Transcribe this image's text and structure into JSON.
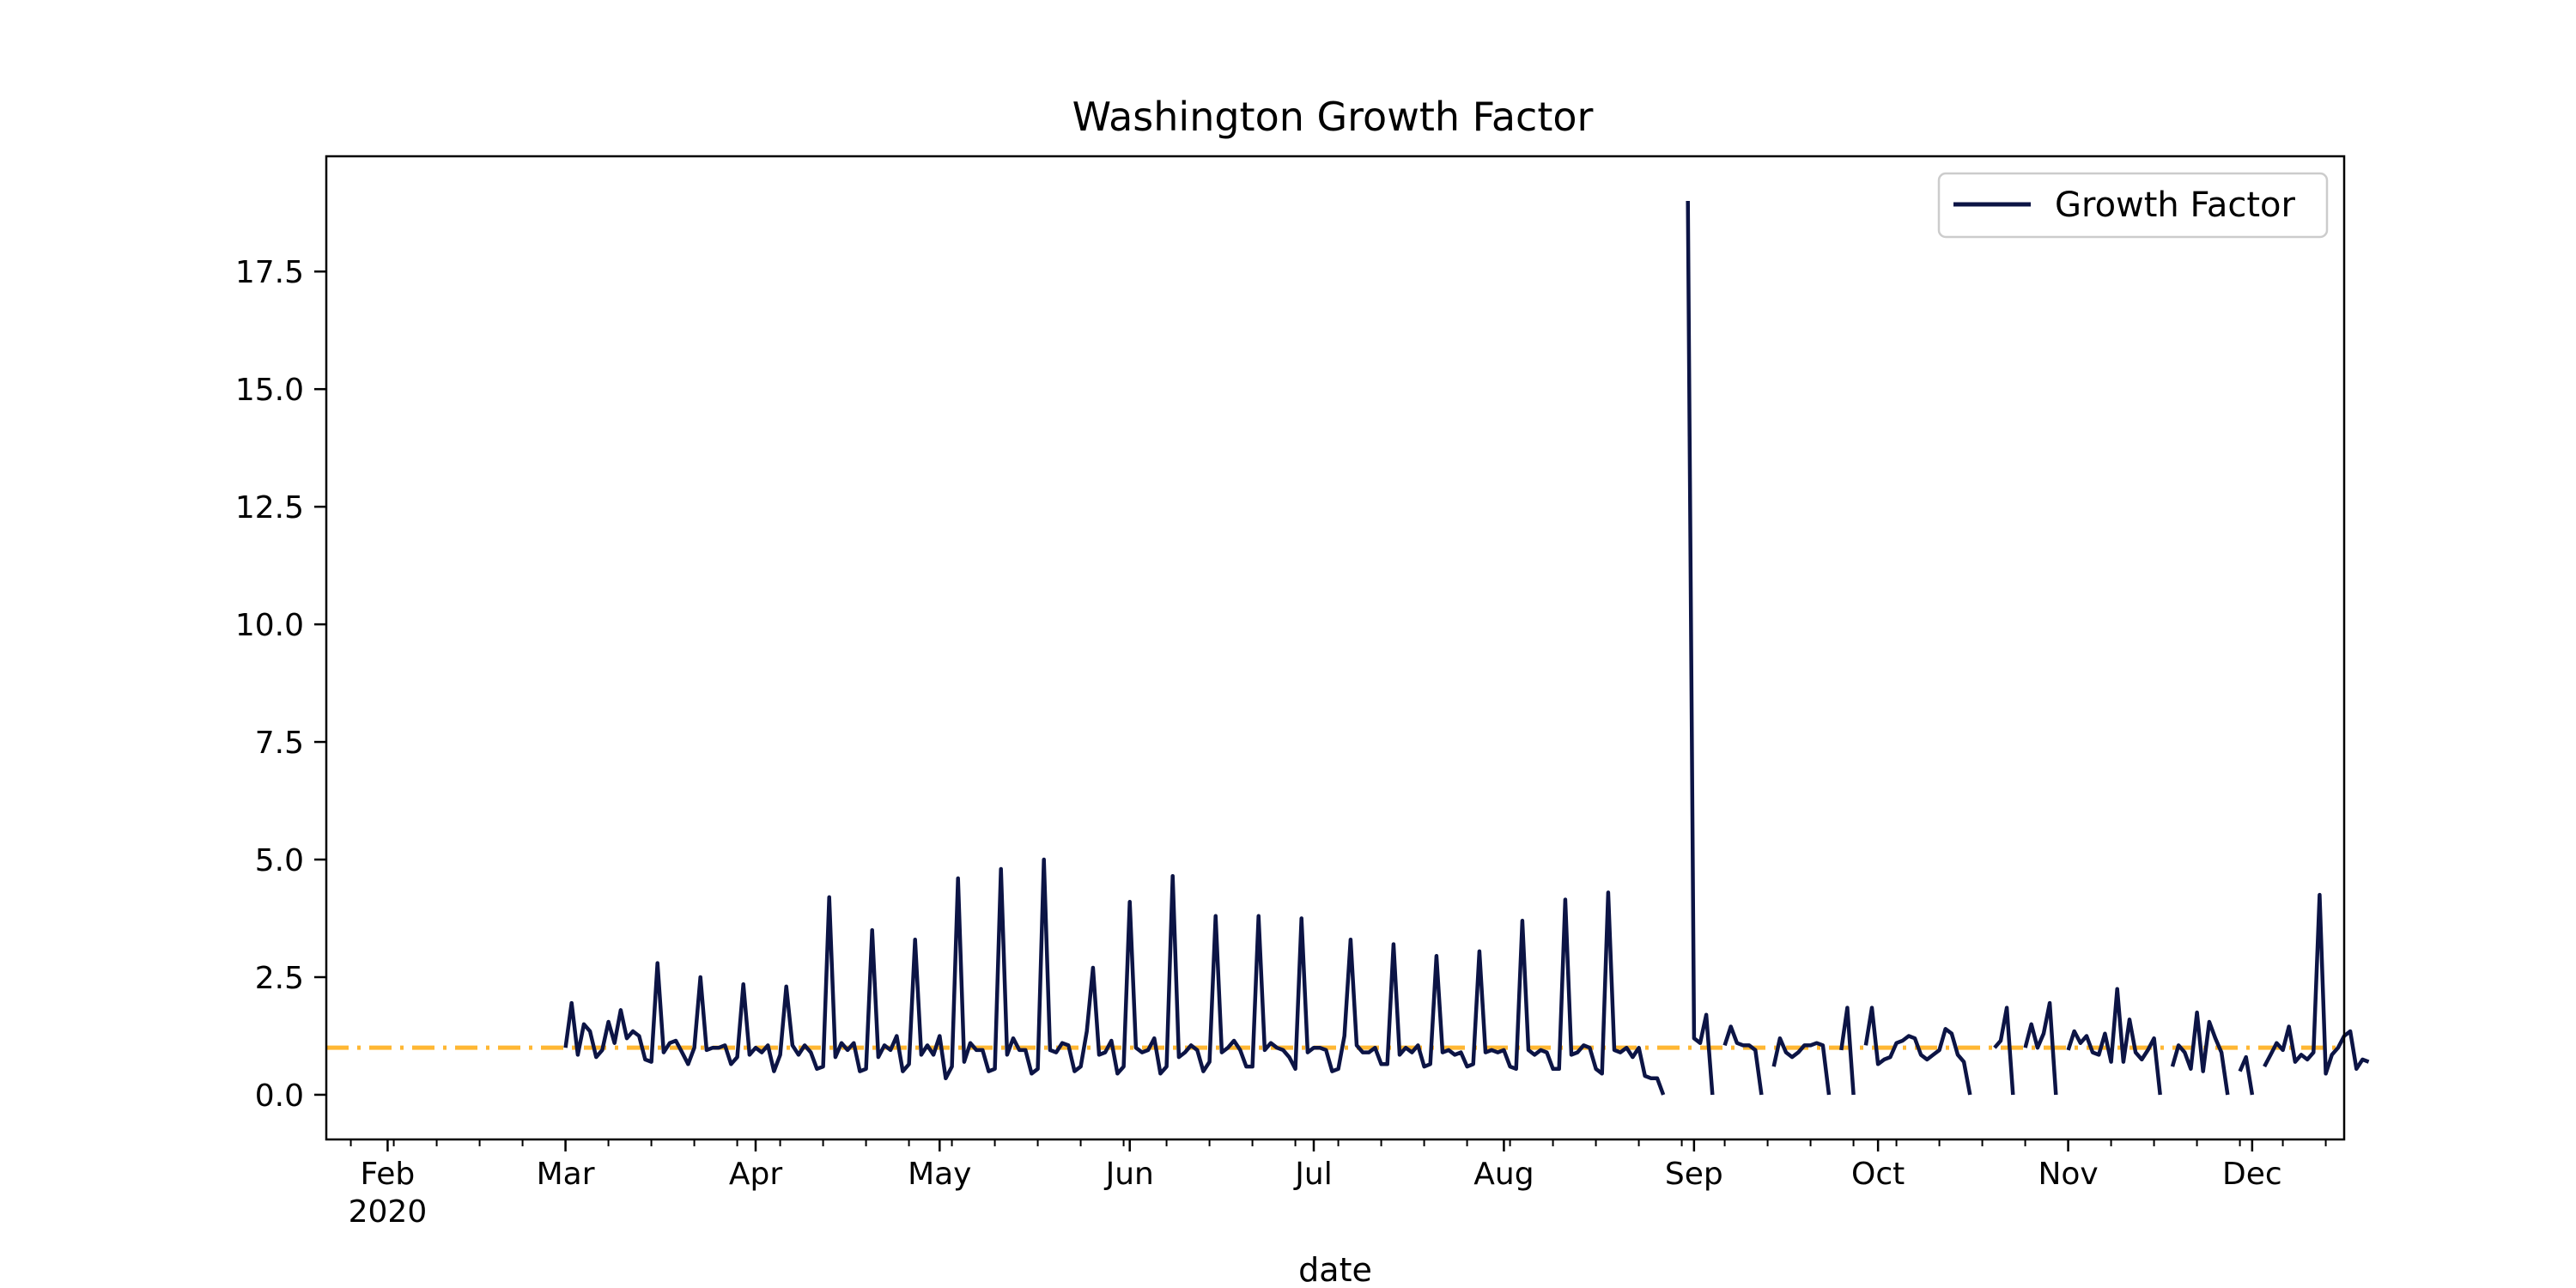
{
  "chart_data": {
    "type": "line",
    "title": "Washington Growth Factor",
    "xlabel": "date",
    "ylabel": "",
    "xlim": [
      "2020-01-22",
      "2020-12-16"
    ],
    "ylim": [
      -0.95,
      19.95
    ],
    "legend_position": "top-right",
    "grid": false,
    "x_tick_labels": [
      {
        "date": "2020-02-01",
        "label": "Feb",
        "sublabel": "2020"
      },
      {
        "date": "2020-03-01",
        "label": "Mar",
        "sublabel": ""
      },
      {
        "date": "2020-04-01",
        "label": "Apr",
        "sublabel": ""
      },
      {
        "date": "2020-05-01",
        "label": "May",
        "sublabel": ""
      },
      {
        "date": "2020-06-01",
        "label": "Jun",
        "sublabel": ""
      },
      {
        "date": "2020-07-01",
        "label": "Jul",
        "sublabel": ""
      },
      {
        "date": "2020-08-01",
        "label": "Aug",
        "sublabel": ""
      },
      {
        "date": "2020-09-01",
        "label": "Sep",
        "sublabel": ""
      },
      {
        "date": "2020-10-01",
        "label": "Oct",
        "sublabel": ""
      },
      {
        "date": "2020-11-01",
        "label": "Nov",
        "sublabel": ""
      },
      {
        "date": "2020-12-01",
        "label": "Dec",
        "sublabel": ""
      }
    ],
    "y_ticks": [
      0.0,
      2.5,
      5.0,
      7.5,
      10.0,
      12.5,
      15.0,
      17.5
    ],
    "y_tick_labels": [
      "0.0",
      "2.5",
      "5.0",
      "7.5",
      "10.0",
      "12.5",
      "15.0",
      "17.5"
    ],
    "reference_line": {
      "y": 1.0,
      "color": "#FFB733",
      "style": "dash-dot"
    },
    "series": [
      {
        "name": "Growth Factor",
        "color": "#0C1445",
        "start_date": "2020-03-01",
        "values": [
          1.0,
          1.95,
          0.85,
          1.5,
          1.35,
          0.8,
          0.95,
          1.55,
          1.1,
          1.8,
          1.2,
          1.35,
          1.25,
          0.75,
          0.7,
          2.8,
          0.9,
          1.1,
          1.15,
          0.9,
          0.65,
          1.0,
          2.5,
          0.95,
          1.0,
          1.0,
          1.05,
          0.65,
          0.8,
          2.35,
          0.85,
          1.0,
          0.9,
          1.05,
          0.5,
          0.85,
          2.3,
          1.05,
          0.85,
          1.05,
          0.9,
          0.55,
          0.6,
          4.2,
          0.8,
          1.1,
          0.95,
          1.1,
          0.5,
          0.55,
          3.5,
          0.8,
          1.05,
          0.95,
          1.25,
          0.5,
          0.65,
          3.3,
          0.85,
          1.05,
          0.85,
          1.25,
          0.35,
          0.6,
          4.6,
          0.7,
          1.1,
          0.95,
          0.95,
          0.5,
          0.55,
          4.8,
          0.85,
          1.2,
          0.95,
          0.95,
          0.45,
          0.55,
          5.0,
          0.95,
          0.9,
          1.1,
          1.05,
          0.5,
          0.6,
          1.35,
          2.7,
          0.85,
          0.9,
          1.15,
          0.45,
          0.6,
          4.1,
          1.0,
          0.9,
          0.95,
          1.2,
          0.45,
          0.6,
          4.65,
          0.8,
          0.9,
          1.05,
          0.95,
          0.5,
          0.7,
          3.8,
          0.9,
          1.0,
          1.15,
          0.95,
          0.6,
          0.6,
          3.8,
          0.95,
          1.1,
          1.0,
          0.95,
          0.8,
          0.55,
          3.75,
          0.9,
          1.0,
          1.0,
          0.95,
          0.5,
          0.55,
          1.25,
          3.3,
          1.05,
          0.9,
          0.9,
          1.0,
          0.65,
          0.65,
          3.2,
          0.85,
          1.0,
          0.9,
          1.05,
          0.6,
          0.65,
          2.95,
          0.9,
          0.95,
          0.85,
          0.9,
          0.6,
          0.65,
          3.05,
          0.9,
          0.95,
          0.9,
          0.95,
          0.6,
          0.55,
          3.7,
          0.95,
          0.85,
          0.95,
          0.9,
          0.55,
          0.55,
          4.15,
          0.85,
          0.9,
          1.05,
          1.0,
          0.55,
          0.45,
          4.3,
          0.95,
          0.9,
          1.0,
          0.8,
          1.0,
          0.4,
          0.35,
          0.35,
          0.0,
          null,
          null,
          null,
          19.0,
          1.2,
          1.1,
          1.7,
          0.0,
          null,
          1.05,
          1.45,
          1.1,
          1.05,
          1.05,
          0.95,
          0.0,
          null,
          0.6,
          1.2,
          0.9,
          0.8,
          0.9,
          1.05,
          1.05,
          1.1,
          1.05,
          0.0,
          null,
          0.95,
          1.85,
          0.0,
          null,
          1.05,
          1.85,
          0.65,
          0.75,
          0.8,
          1.1,
          1.15,
          1.25,
          1.2,
          0.85,
          0.75,
          0.85,
          0.95,
          1.4,
          1.3,
          0.85,
          0.7,
          0.0,
          null,
          null,
          null,
          1.0,
          1.15,
          1.85,
          0.0,
          null,
          1.0,
          1.5,
          1.0,
          1.3,
          1.95,
          0.0,
          null,
          0.95,
          1.35,
          1.1,
          1.25,
          0.9,
          0.85,
          1.3,
          0.7,
          2.25,
          0.7,
          1.6,
          0.9,
          0.75,
          0.95,
          1.2,
          0.0,
          null,
          0.6,
          1.05,
          0.9,
          0.55,
          1.75,
          0.5,
          1.55,
          1.2,
          0.9,
          0.0,
          null,
          0.5,
          0.8,
          0.0,
          null,
          0.6,
          0.85,
          1.1,
          0.95,
          1.45,
          0.7,
          0.85,
          0.75,
          0.9,
          4.25,
          0.45,
          0.85,
          1.0,
          1.25,
          1.35,
          0.55,
          0.75,
          0.7
        ]
      }
    ]
  }
}
